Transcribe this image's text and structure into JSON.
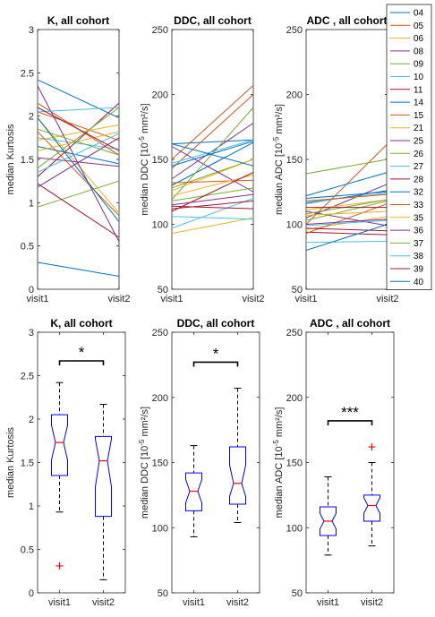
{
  "chart_data": [
    {
      "type": "line",
      "title": "K, all cohort",
      "ylabel": "median Kurtosis",
      "ylabel_super": "",
      "ylabel_after": "",
      "ylim": [
        0,
        3
      ],
      "yticks": [
        0,
        0.5,
        1,
        1.5,
        2,
        2.5,
        3
      ],
      "categories": [
        "visit1",
        "visit2"
      ],
      "series": [
        {
          "name": "04",
          "values": [
            2.42,
            1.98
          ]
        },
        {
          "name": "05",
          "values": [
            2.05,
            1.72
          ]
        },
        {
          "name": "06",
          "values": [
            1.98,
            0.88
          ]
        },
        {
          "name": "08",
          "values": [
            1.52,
            1.42
          ]
        },
        {
          "name": "09",
          "values": [
            0.95,
            1.25
          ]
        },
        {
          "name": "10",
          "values": [
            1.75,
            1.62
          ]
        },
        {
          "name": "11",
          "values": [
            1.3,
            2.15
          ]
        },
        {
          "name": "14",
          "values": [
            1.65,
            1.45
          ]
        },
        {
          "name": "15",
          "values": [
            2.15,
            1.55
          ]
        },
        {
          "name": "21",
          "values": [
            1.72,
            1.9
          ]
        },
        {
          "name": "25",
          "values": [
            2.35,
            0.55
          ]
        },
        {
          "name": "26",
          "values": [
            1.4,
            2.1
          ]
        },
        {
          "name": "27",
          "values": [
            2.05,
            2.1
          ]
        },
        {
          "name": "28",
          "values": [
            1.22,
            0.6
          ]
        },
        {
          "name": "32",
          "values": [
            0.31,
            0.15
          ]
        },
        {
          "name": "33",
          "values": [
            1.82,
            0.85
          ]
        },
        {
          "name": "35",
          "values": [
            1.6,
            1.82
          ]
        },
        {
          "name": "36",
          "values": [
            1.18,
            1.75
          ]
        },
        {
          "name": "37",
          "values": [
            1.85,
            1.55
          ]
        },
        {
          "name": "38",
          "values": [
            1.35,
            1.8
          ]
        },
        {
          "name": "39",
          "values": [
            2.1,
            1.6
          ]
        },
        {
          "name": "40",
          "values": [
            1.98,
            0.78
          ]
        }
      ]
    },
    {
      "type": "line",
      "title": "DDC, all cohort",
      "ylabel": "median DDC [10",
      "ylabel_super": "-5",
      "ylabel_after": " mm²/s]",
      "ylim": [
        50,
        250
      ],
      "yticks": [
        50,
        100,
        150,
        200,
        250
      ],
      "categories": [
        "visit1",
        "visit2"
      ],
      "series": [
        {
          "name": "04",
          "values": [
            162,
            165
          ]
        },
        {
          "name": "05",
          "values": [
            150,
            207
          ]
        },
        {
          "name": "06",
          "values": [
            93,
            105
          ]
        },
        {
          "name": "08",
          "values": [
            135,
            178
          ]
        },
        {
          "name": "09",
          "values": [
            128,
            150
          ]
        },
        {
          "name": "10",
          "values": [
            97,
            120
          ]
        },
        {
          "name": "11",
          "values": [
            112,
            118
          ]
        },
        {
          "name": "14",
          "values": [
            130,
            163
          ]
        },
        {
          "name": "15",
          "values": [
            143,
            200
          ]
        },
        {
          "name": "21",
          "values": [
            126,
            150
          ]
        },
        {
          "name": "25",
          "values": [
            160,
            125
          ]
        },
        {
          "name": "26",
          "values": [
            119,
            190
          ]
        },
        {
          "name": "27",
          "values": [
            147,
            165
          ]
        },
        {
          "name": "28",
          "values": [
            114,
            112
          ]
        },
        {
          "name": "32",
          "values": [
            162,
            145
          ]
        },
        {
          "name": "33",
          "values": [
            132,
            134
          ]
        },
        {
          "name": "35",
          "values": [
            122,
            138
          ]
        },
        {
          "name": "36",
          "values": [
            115,
            123
          ]
        },
        {
          "name": "37",
          "values": [
            118,
            128
          ]
        },
        {
          "name": "38",
          "values": [
            106,
            104
          ]
        },
        {
          "name": "39",
          "values": [
            110,
            140
          ]
        },
        {
          "name": "40",
          "values": [
            145,
            164
          ]
        }
      ]
    },
    {
      "type": "line",
      "title": "ADC , all cohort",
      "ylabel": "median ADC [10",
      "ylabel_super": "-5",
      "ylabel_after": " mm²/s]",
      "ylim": [
        50,
        250
      ],
      "yticks": [
        50,
        100,
        150,
        200,
        250
      ],
      "categories": [
        "visit1",
        "visit2"
      ],
      "series": [
        {
          "name": "04",
          "values": [
            120,
            125
          ]
        },
        {
          "name": "05",
          "values": [
            100,
            162
          ]
        },
        {
          "name": "06",
          "values": [
            96,
            106
          ]
        },
        {
          "name": "08",
          "values": [
            105,
            131
          ]
        },
        {
          "name": "09",
          "values": [
            139,
            150
          ]
        },
        {
          "name": "10",
          "values": [
            86,
            87
          ]
        },
        {
          "name": "11",
          "values": [
            94,
            92
          ]
        },
        {
          "name": "14",
          "values": [
            116,
            126
          ]
        },
        {
          "name": "15",
          "values": [
            93,
            116
          ]
        },
        {
          "name": "21",
          "values": [
            111,
            119
          ]
        },
        {
          "name": "25",
          "values": [
            110,
            99
          ]
        },
        {
          "name": "26",
          "values": [
            103,
            118
          ]
        },
        {
          "name": "27",
          "values": [
            117,
            124
          ]
        },
        {
          "name": "28",
          "values": [
            97,
            95
          ]
        },
        {
          "name": "32",
          "values": [
            80,
            100
          ]
        },
        {
          "name": "33",
          "values": [
            118,
            123
          ]
        },
        {
          "name": "35",
          "values": [
            107,
            110
          ]
        },
        {
          "name": "36",
          "values": [
            100,
            104
          ]
        },
        {
          "name": "37",
          "values": [
            108,
            119
          ]
        },
        {
          "name": "38",
          "values": [
            99,
            103
          ]
        },
        {
          "name": "39",
          "values": [
            113,
            113
          ]
        },
        {
          "name": "40",
          "values": [
            122,
            140
          ]
        }
      ]
    },
    {
      "type": "box",
      "title": "K, all cohort",
      "ylabel": "median Kurtosis",
      "ylabel_super": "",
      "ylabel_after": "",
      "ylim": [
        0,
        3
      ],
      "yticks": [
        0,
        0.5,
        1,
        1.5,
        2,
        2.5,
        3
      ],
      "categories": [
        "visit1",
        "visit2"
      ],
      "boxes": [
        {
          "whisker_low": 0.93,
          "q1": 1.35,
          "notch_low": 1.53,
          "median": 1.73,
          "notch_high": 1.93,
          "q3": 2.05,
          "whisker_high": 2.42,
          "outliers": [
            0.31
          ]
        },
        {
          "whisker_low": 0.15,
          "q1": 0.88,
          "notch_low": 1.22,
          "median": 1.52,
          "notch_high": 1.77,
          "q3": 1.8,
          "whisker_high": 2.17,
          "outliers": []
        }
      ],
      "significance": "*"
    },
    {
      "type": "box",
      "title": "DDC, all cohort",
      "ylabel": "median DDC [10",
      "ylabel_super": "-5",
      "ylabel_after": " mm²/s]",
      "ylim": [
        50,
        250
      ],
      "yticks": [
        50,
        100,
        150,
        200,
        250
      ],
      "categories": [
        "visit1",
        "visit2"
      ],
      "boxes": [
        {
          "whisker_low": 93,
          "q1": 113,
          "notch_low": 119,
          "median": 128,
          "notch_high": 137,
          "q3": 142,
          "whisker_high": 163,
          "outliers": []
        },
        {
          "whisker_low": 104,
          "q1": 118,
          "notch_low": 124,
          "median": 134,
          "notch_high": 148,
          "q3": 162,
          "whisker_high": 207,
          "outliers": []
        }
      ],
      "significance": "*"
    },
    {
      "type": "box",
      "title": "ADC , all cohort",
      "ylabel": "median ADC [10",
      "ylabel_super": "-5",
      "ylabel_after": " mm²/s]",
      "ylim": [
        50,
        250
      ],
      "yticks": [
        50,
        100,
        150,
        200,
        250
      ],
      "categories": [
        "visit1",
        "visit2"
      ],
      "boxes": [
        {
          "whisker_low": 79,
          "q1": 94,
          "notch_low": 99,
          "median": 105,
          "notch_high": 111,
          "q3": 116,
          "whisker_high": 139,
          "outliers": []
        },
        {
          "whisker_low": 86,
          "q1": 105,
          "notch_low": 111,
          "median": 117,
          "notch_high": 123,
          "q3": 125,
          "whisker_high": 150,
          "outliers": [
            162
          ]
        }
      ],
      "significance": "***"
    }
  ],
  "legend": {
    "placement": "right",
    "entries": [
      {
        "label": "04",
        "color": "#0072bd"
      },
      {
        "label": "05",
        "color": "#d95319"
      },
      {
        "label": "06",
        "color": "#edb120"
      },
      {
        "label": "08",
        "color": "#7e2f8e"
      },
      {
        "label": "09",
        "color": "#77ac30"
      },
      {
        "label": "10",
        "color": "#4dbeee"
      },
      {
        "label": "11",
        "color": "#a2142f"
      },
      {
        "label": "14",
        "color": "#0072bd"
      },
      {
        "label": "15",
        "color": "#d95319"
      },
      {
        "label": "21",
        "color": "#edb120"
      },
      {
        "label": "25",
        "color": "#7e2f8e"
      },
      {
        "label": "26",
        "color": "#77ac30"
      },
      {
        "label": "27",
        "color": "#4dbeee"
      },
      {
        "label": "28",
        "color": "#a2142f"
      },
      {
        "label": "32",
        "color": "#0072bd"
      },
      {
        "label": "33",
        "color": "#d95319"
      },
      {
        "label": "35",
        "color": "#edb120"
      },
      {
        "label": "36",
        "color": "#7e2f8e"
      },
      {
        "label": "37",
        "color": "#77ac30"
      },
      {
        "label": "38",
        "color": "#4dbeee"
      },
      {
        "label": "39",
        "color": "#a2142f"
      },
      {
        "label": "40",
        "color": "#0072bd"
      }
    ]
  },
  "style": {
    "box_color": "#0000ff",
    "median_color": "#ff0000",
    "outlier_color": "#ff0000",
    "whisker_color": "#000000"
  }
}
